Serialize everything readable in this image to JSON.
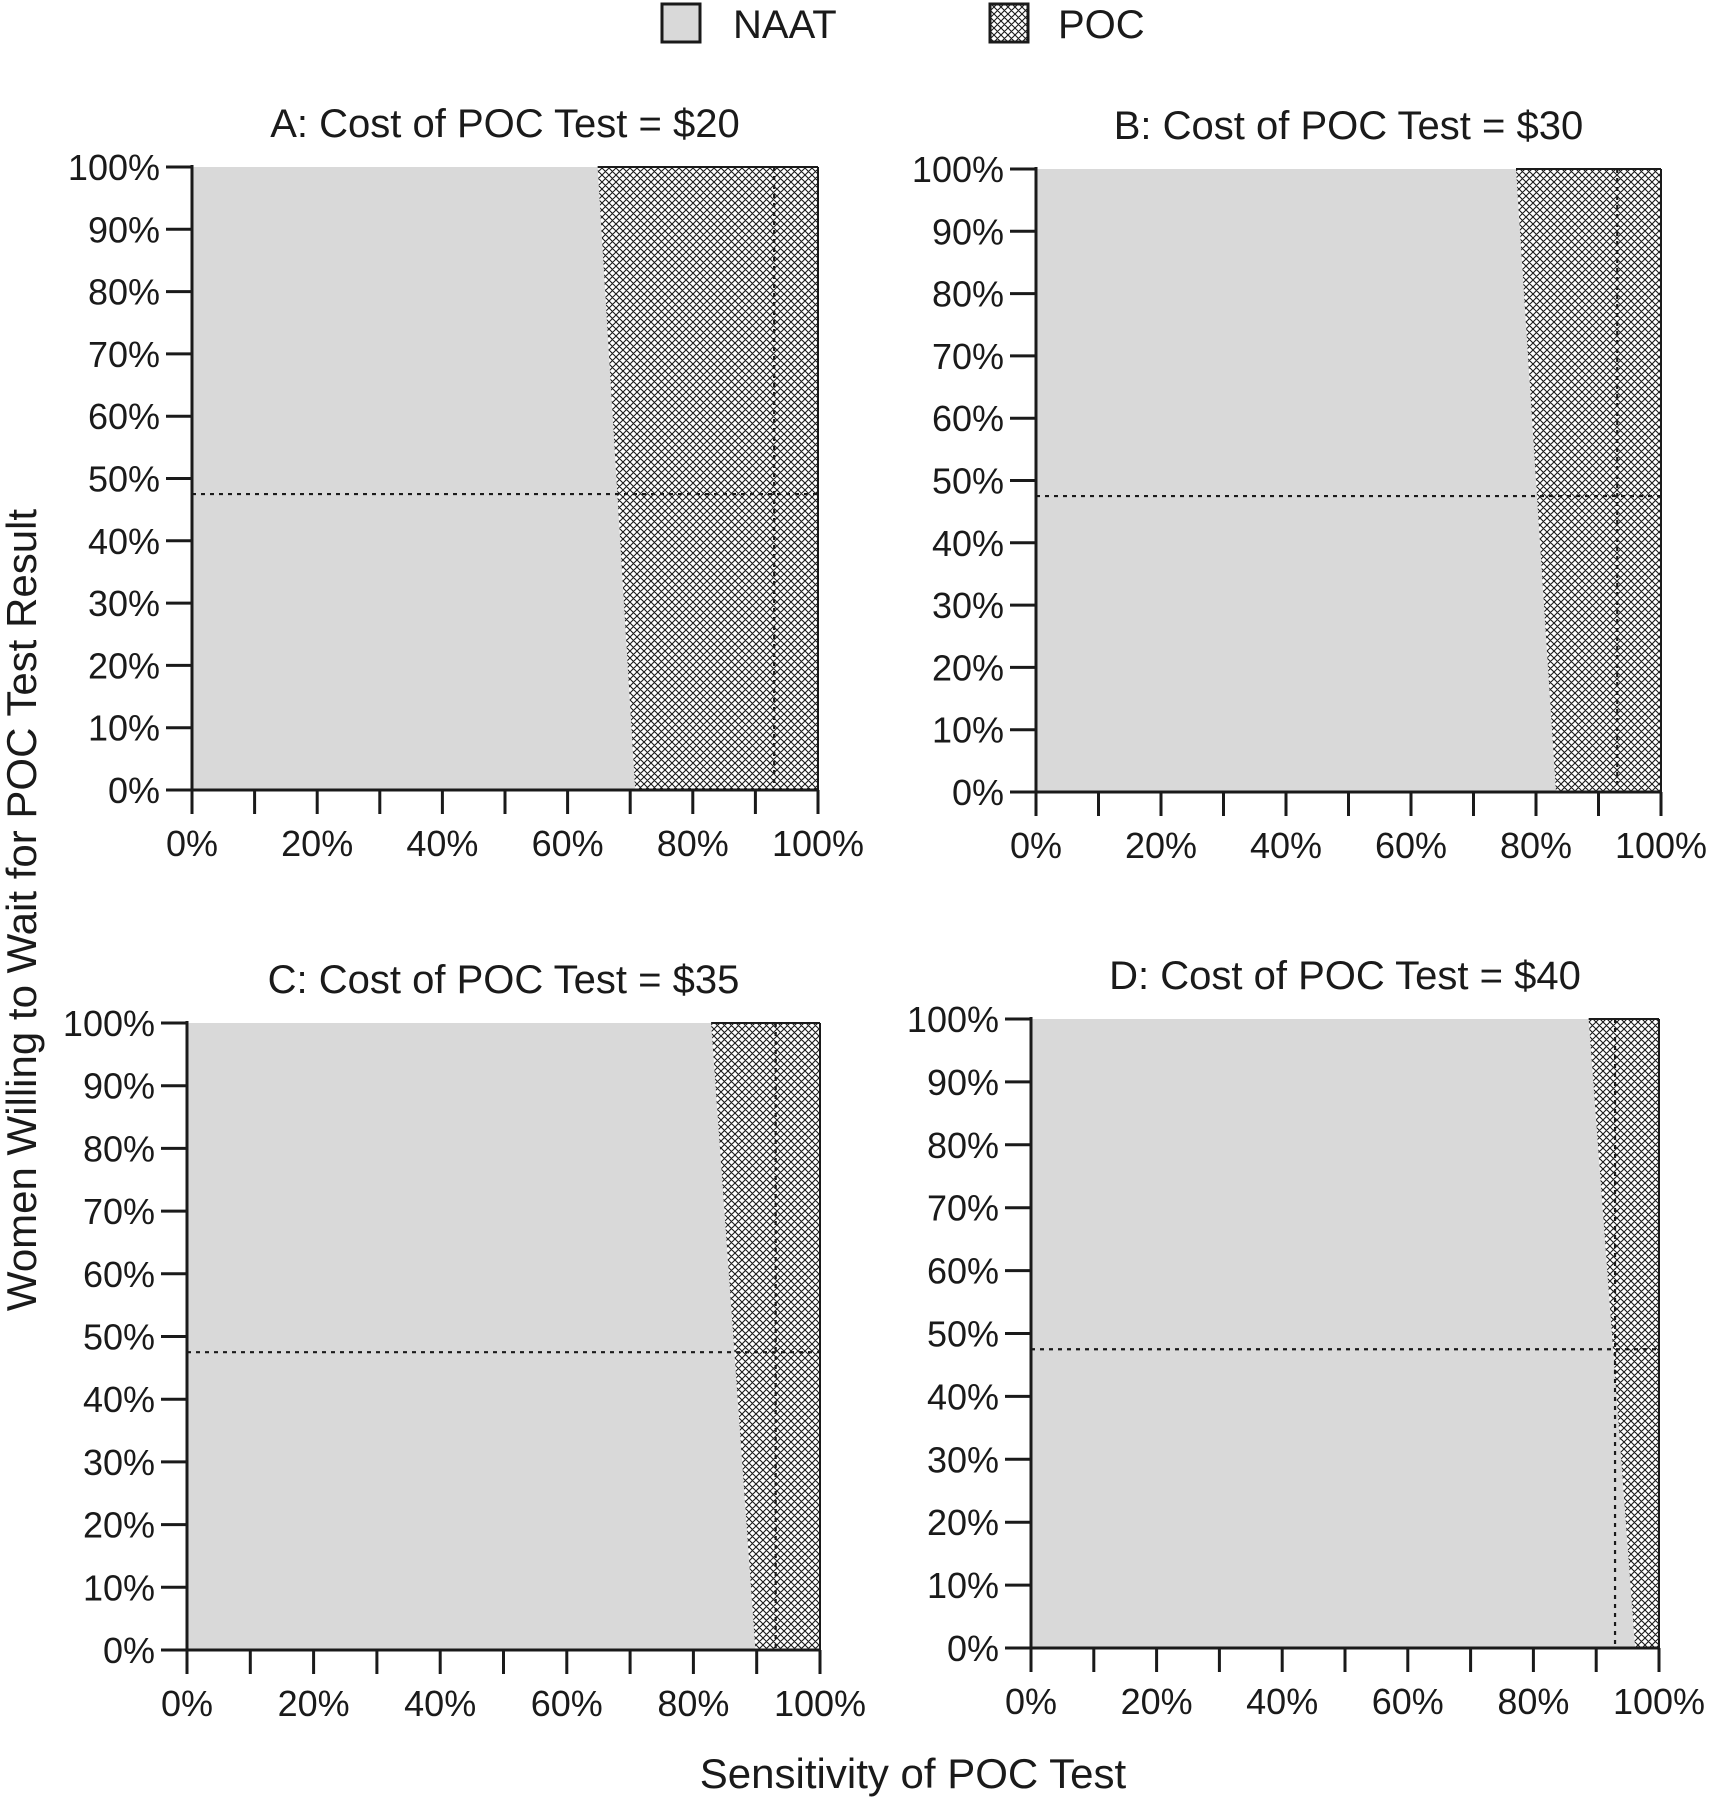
{
  "legend": {
    "items": [
      {
        "label": "NAAT",
        "fill": "#d9d9d9",
        "pattern": "none"
      },
      {
        "label": "POC",
        "fill": "#ffffff",
        "pattern": "crosshatch"
      }
    ]
  },
  "x_axis_title": "Sensitivity of POC Test",
  "y_axis_title": "Women Willing to Wait for POC Test Result",
  "colors": {
    "naat": "#d9d9d9",
    "poc_hatch": "#1a1a1a",
    "axis": "#1a1a1a"
  },
  "chart_data": [
    {
      "type": "area",
      "panel": "A",
      "title": "A: Cost of POC Test = $20",
      "xlabel": "Sensitivity of POC Test",
      "ylabel": "Women Willing to Wait for POC Test Result",
      "xlim": [
        0,
        100
      ],
      "ylim": [
        0,
        100
      ],
      "x_ticks": [
        "0%",
        "20%",
        "40%",
        "60%",
        "80%",
        "100%"
      ],
      "y_ticks": [
        "0%",
        "10%",
        "20%",
        "30%",
        "40%",
        "50%",
        "60%",
        "70%",
        "80%",
        "90%",
        "100%"
      ],
      "threshold": {
        "sensitivity_at_0": 70.8,
        "sensitivity_at_100": 64.8
      },
      "series": [
        {
          "name": "NAAT",
          "region": "left of threshold"
        },
        {
          "name": "POC",
          "region": "right of threshold"
        }
      ],
      "reference_lines": {
        "x": 93,
        "y": 47.5
      }
    },
    {
      "type": "area",
      "panel": "B",
      "title": "B: Cost of POC Test = $30",
      "xlabel": "Sensitivity of POC Test",
      "ylabel": "Women Willing to Wait for POC Test Result",
      "xlim": [
        0,
        100
      ],
      "ylim": [
        0,
        100
      ],
      "x_ticks": [
        "0%",
        "20%",
        "40%",
        "60%",
        "80%",
        "100%"
      ],
      "y_ticks": [
        "0%",
        "10%",
        "20%",
        "30%",
        "40%",
        "50%",
        "60%",
        "70%",
        "80%",
        "90%",
        "100%"
      ],
      "threshold": {
        "sensitivity_at_0": 83.2,
        "sensitivity_at_100": 76.8
      },
      "series": [
        {
          "name": "NAAT",
          "region": "left of threshold"
        },
        {
          "name": "POC",
          "region": "right of threshold"
        }
      ],
      "reference_lines": {
        "x": 93,
        "y": 47.5
      }
    },
    {
      "type": "area",
      "panel": "C",
      "title": "C: Cost of POC Test = $35",
      "xlabel": "Sensitivity of POC Test",
      "ylabel": "Women Willing to Wait for POC Test Result",
      "xlim": [
        0,
        100
      ],
      "ylim": [
        0,
        100
      ],
      "x_ticks": [
        "0%",
        "20%",
        "40%",
        "60%",
        "80%",
        "100%"
      ],
      "y_ticks": [
        "0%",
        "10%",
        "20%",
        "30%",
        "40%",
        "50%",
        "60%",
        "70%",
        "80%",
        "90%",
        "100%"
      ],
      "threshold": {
        "sensitivity_at_0": 89.8,
        "sensitivity_at_100": 82.8
      },
      "series": [
        {
          "name": "NAAT",
          "region": "left of threshold"
        },
        {
          "name": "POC",
          "region": "right of threshold"
        }
      ],
      "reference_lines": {
        "x": 93,
        "y": 47.5
      }
    },
    {
      "type": "area",
      "panel": "D",
      "title": "D: Cost of POC Test = $40",
      "xlabel": "Sensitivity of POC Test",
      "ylabel": "Women Willing to Wait for POC Test Result",
      "xlim": [
        0,
        100
      ],
      "ylim": [
        0,
        100
      ],
      "x_ticks": [
        "0%",
        "20%",
        "40%",
        "60%",
        "80%",
        "100%"
      ],
      "y_ticks": [
        "0%",
        "10%",
        "20%",
        "30%",
        "40%",
        "50%",
        "60%",
        "70%",
        "80%",
        "90%",
        "100%"
      ],
      "threshold": {
        "sensitivity_at_0": 96.2,
        "sensitivity_at_100": 88.8
      },
      "series": [
        {
          "name": "NAAT",
          "region": "left of threshold"
        },
        {
          "name": "POC",
          "region": "right of threshold"
        }
      ],
      "reference_lines": {
        "x": 93,
        "y": 47.5
      }
    }
  ]
}
